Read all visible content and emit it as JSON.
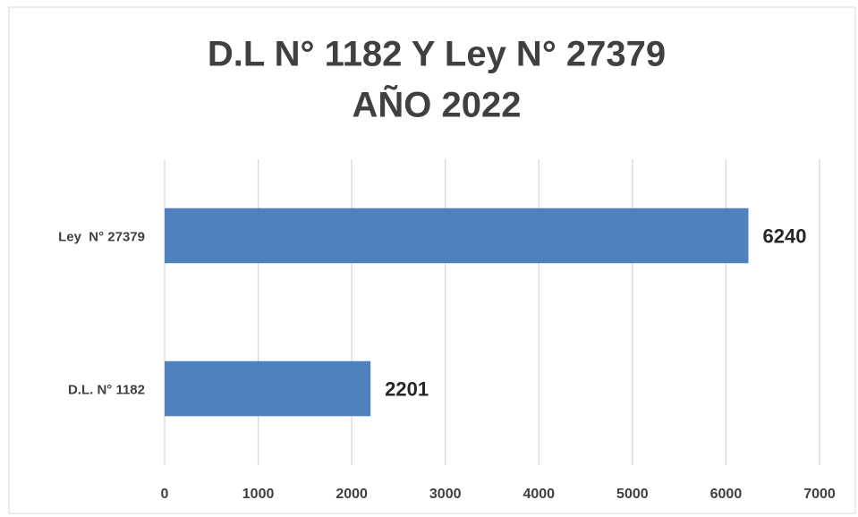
{
  "chart_data": {
    "type": "bar",
    "orientation": "horizontal",
    "title": [
      "D.L N° 1182 Y Ley N° 27379",
      "AÑO 2022"
    ],
    "categories": [
      "D.L. N° 1182",
      "Ley  N° 27379"
    ],
    "values": [
      2201,
      6240
    ],
    "color": "#4f81bd",
    "xlim": [
      0,
      7000
    ],
    "xticks": [
      0,
      1000,
      2000,
      3000,
      4000,
      5000,
      6000,
      7000
    ],
    "grid": true
  }
}
